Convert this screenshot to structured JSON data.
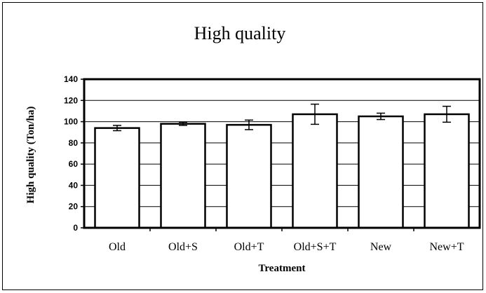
{
  "chart_data": {
    "type": "bar",
    "title": "High quality",
    "xlabel": "Treatment",
    "ylabel": "High quality (Ton/ha)",
    "categories": [
      "Old",
      "Old+S",
      "Old+T",
      "Old+S+T",
      "New",
      "New+T"
    ],
    "values": [
      94,
      98,
      97,
      107,
      105,
      107
    ],
    "error": [
      2.5,
      1.5,
      4.5,
      9.5,
      3,
      7.5
    ],
    "ylim": [
      0,
      140
    ],
    "yticks": [
      "0",
      "20",
      "40",
      "60",
      "80",
      "100",
      "120",
      "140"
    ],
    "ytick_values": [
      0,
      20,
      40,
      60,
      80,
      100,
      120,
      140
    ],
    "grid": true,
    "bar_color": "#ffffff",
    "edge_color": "#000000"
  }
}
